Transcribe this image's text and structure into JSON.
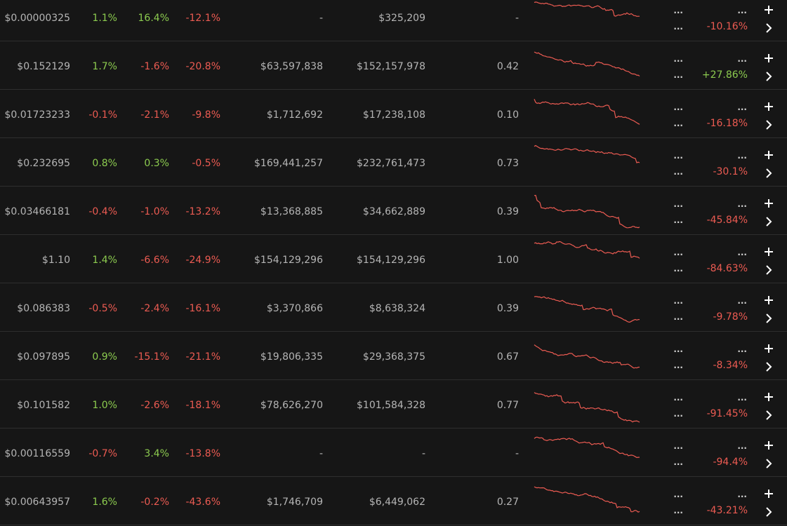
{
  "table": {
    "rows": [
      {
        "price": "$0.00000325",
        "h1": "1.1%",
        "h24": "16.4%",
        "d7": "-12.1%",
        "volume": "-",
        "mcap": "$325,209",
        "ratio": "-",
        "more1": "...",
        "more2": "...",
        "more3": "...",
        "change": "-10.16%"
      },
      {
        "price": "$0.152129",
        "h1": "1.7%",
        "h24": "-1.6%",
        "d7": "-20.8%",
        "volume": "$63,597,838",
        "mcap": "$152,157,978",
        "ratio": "0.42",
        "more1": "...",
        "more2": "...",
        "more3": "...",
        "change": "+27.86%"
      },
      {
        "price": "$0.01723233",
        "h1": "-0.1%",
        "h24": "-2.1%",
        "d7": "-9.8%",
        "volume": "$1,712,692",
        "mcap": "$17,238,108",
        "ratio": "0.10",
        "more1": "...",
        "more2": "...",
        "more3": "...",
        "change": "-16.18%"
      },
      {
        "price": "$0.232695",
        "h1": "0.8%",
        "h24": "0.3%",
        "d7": "-0.5%",
        "volume": "$169,441,257",
        "mcap": "$232,761,473",
        "ratio": "0.73",
        "more1": "...",
        "more2": "...",
        "more3": "...",
        "change": "-30.1%"
      },
      {
        "price": "$0.03466181",
        "h1": "-0.4%",
        "h24": "-1.0%",
        "d7": "-13.2%",
        "volume": "$13,368,885",
        "mcap": "$34,662,889",
        "ratio": "0.39",
        "more1": "...",
        "more2": "...",
        "more3": "...",
        "change": "-45.84%"
      },
      {
        "price": "$1.10",
        "h1": "1.4%",
        "h24": "-6.6%",
        "d7": "-24.9%",
        "volume": "$154,129,296",
        "mcap": "$154,129,296",
        "ratio": "1.00",
        "more1": "...",
        "more2": "...",
        "more3": "...",
        "change": "-84.63%"
      },
      {
        "price": "$0.086383",
        "h1": "-0.5%",
        "h24": "-2.4%",
        "d7": "-16.1%",
        "volume": "$3,370,866",
        "mcap": "$8,638,324",
        "ratio": "0.39",
        "more1": "...",
        "more2": "...",
        "more3": "...",
        "change": "-9.78%"
      },
      {
        "price": "$0.097895",
        "h1": "0.9%",
        "h24": "-15.1%",
        "d7": "-21.1%",
        "volume": "$19,806,335",
        "mcap": "$29,368,375",
        "ratio": "0.67",
        "more1": "...",
        "more2": "...",
        "more3": "...",
        "change": "-8.34%"
      },
      {
        "price": "$0.101582",
        "h1": "1.0%",
        "h24": "-2.6%",
        "d7": "-18.1%",
        "volume": "$78,626,270",
        "mcap": "$101,584,328",
        "ratio": "0.77",
        "more1": "...",
        "more2": "...",
        "more3": "...",
        "change": "-91.45%"
      },
      {
        "price": "$0.00116559",
        "h1": "-0.7%",
        "h24": "3.4%",
        "d7": "-13.8%",
        "volume": "-",
        "mcap": "-",
        "ratio": "-",
        "more1": "...",
        "more2": "...",
        "more3": "...",
        "change": "-94.4%"
      },
      {
        "price": "$0.00643957",
        "h1": "1.6%",
        "h24": "-0.2%",
        "d7": "-43.6%",
        "volume": "$1,746,709",
        "mcap": "$6,449,062",
        "ratio": "0.27",
        "more1": "...",
        "more2": "...",
        "more3": "...",
        "change": "-43.21%"
      }
    ]
  }
}
